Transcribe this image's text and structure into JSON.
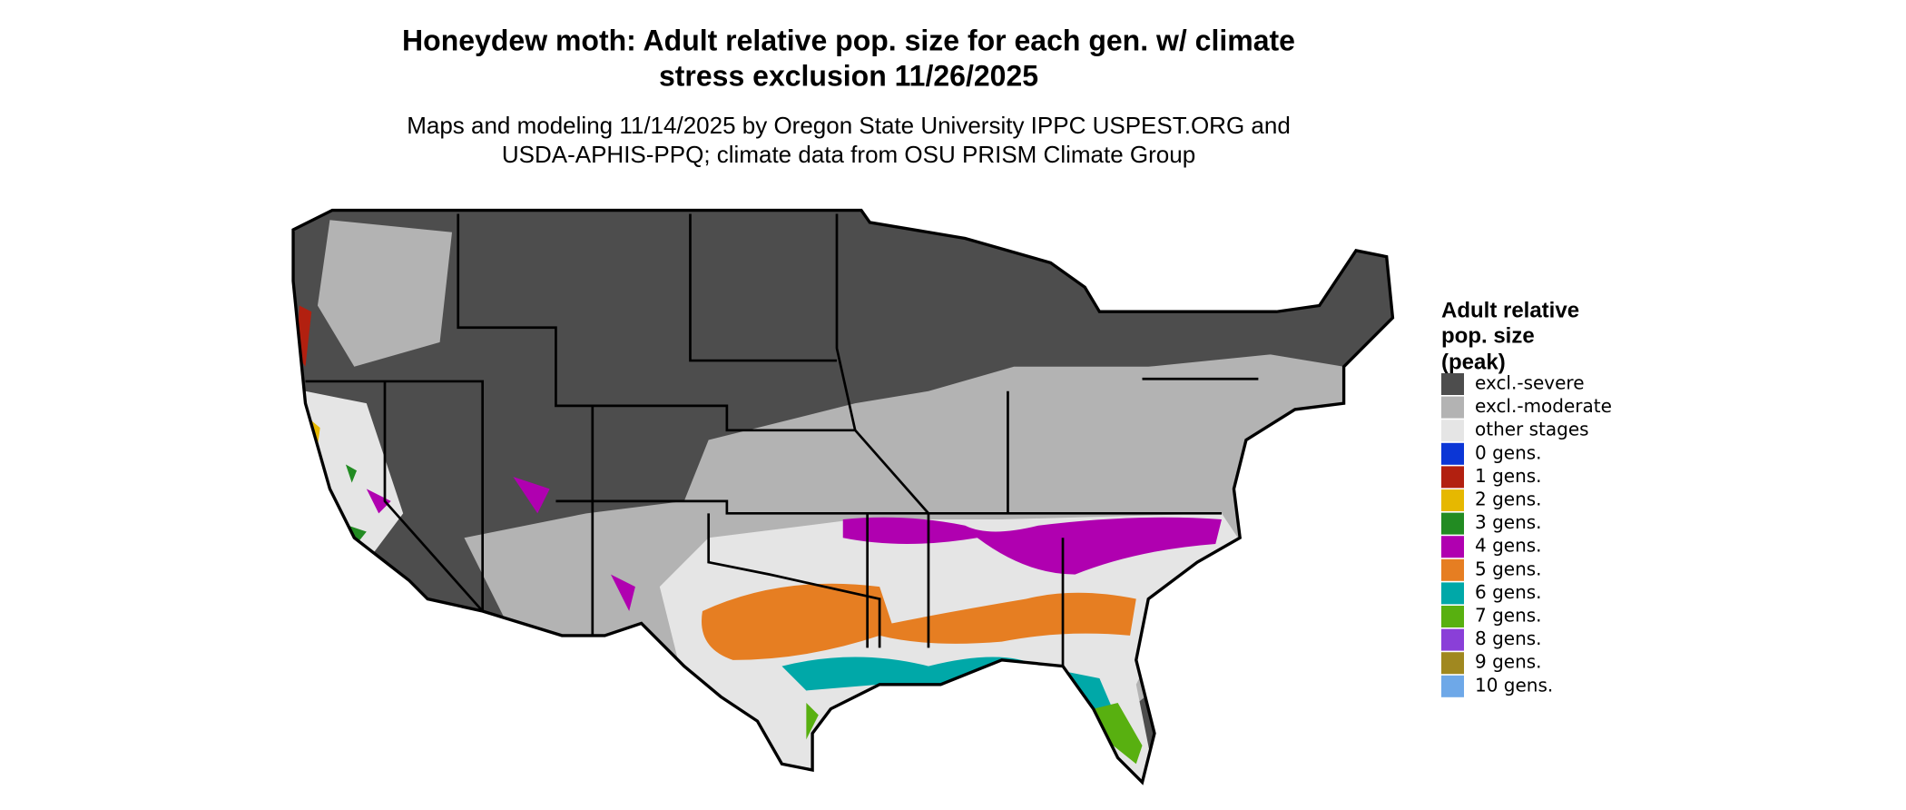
{
  "title": [
    "Honeydew moth: Adult relative pop. size for each gen. w/ climate",
    "stress exclusion 11/26/2025"
  ],
  "subtitle": [
    "Maps and modeling 11/14/2025 by Oregon State University IPPC USPEST.ORG and",
    "USDA-APHIS-PPQ; climate data from OSU PRISM Climate Group"
  ],
  "legend": {
    "title": [
      "Adult relative",
      "pop. size",
      "(peak)"
    ],
    "items": [
      {
        "label": "excl.-severe",
        "color": "#4d4d4d"
      },
      {
        "label": "excl.-moderate",
        "color": "#b3b3b3"
      },
      {
        "label": "other stages",
        "color": "#e5e5e5"
      },
      {
        "label": "0 gens.",
        "color": "#0b36d6"
      },
      {
        "label": "1 gens.",
        "color": "#b22010"
      },
      {
        "label": "2 gens.",
        "color": "#e6b800"
      },
      {
        "label": "3 gens.",
        "color": "#228b22"
      },
      {
        "label": "4 gens.",
        "color": "#b000b0"
      },
      {
        "label": "5 gens.",
        "color": "#e67e22"
      },
      {
        "label": "6 gens.",
        "color": "#00a8a8"
      },
      {
        "label": "7 gens.",
        "color": "#58b010"
      },
      {
        "label": "8 gens.",
        "color": "#8a3fd8"
      },
      {
        "label": "9 gens.",
        "color": "#a08820"
      },
      {
        "label": "10 gens.",
        "color": "#6ea8e8"
      }
    ]
  }
}
